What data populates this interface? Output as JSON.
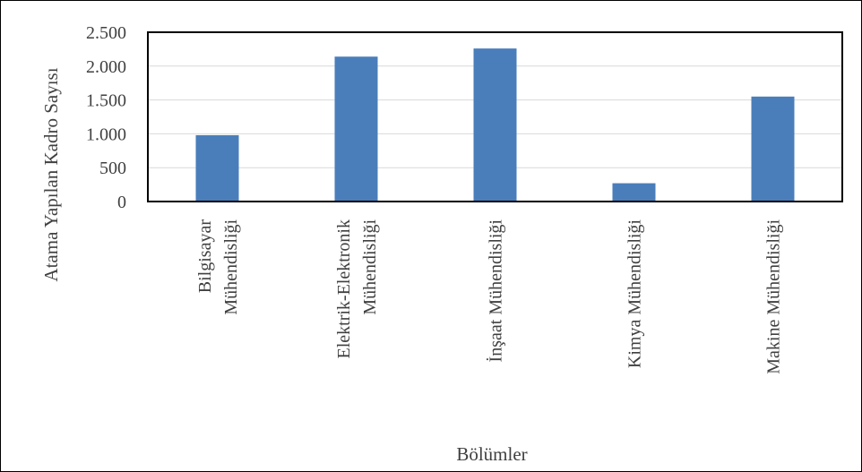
{
  "chart_data": {
    "type": "bar",
    "xlabel": "Bölümler",
    "ylabel": "Atama Yapılan Kadro Sayısı",
    "categories": [
      [
        "Bilgisayar",
        "Mühendisliği"
      ],
      [
        "Elektrik-Elektronik",
        "Mühendisliği"
      ],
      [
        "İnşaat Mühendisliği"
      ],
      [
        "Kimya Mühendisliği"
      ],
      [
        "Makine Mühendisliği"
      ]
    ],
    "values": [
      980,
      2140,
      2260,
      270,
      1550
    ],
    "ylim": [
      0,
      2500
    ],
    "yticks": [
      0,
      500,
      1000,
      1500,
      2000,
      2500
    ],
    "ytick_labels": [
      "0",
      "500",
      "1.000",
      "1.500",
      "2.000",
      "2.500"
    ],
    "grid": true,
    "colors": {
      "bar": "#4a7ebb",
      "grid": "#d9d9d9",
      "plot_border": "#000000",
      "text": "#404040"
    }
  }
}
